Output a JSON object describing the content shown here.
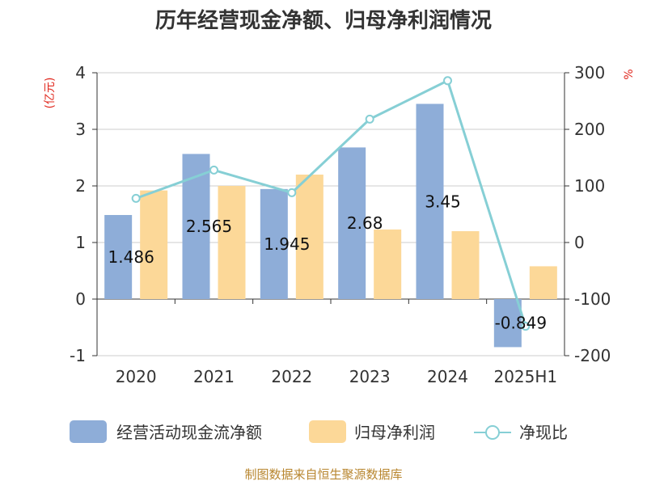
{
  "chart_data": {
    "type": "bar",
    "title": "历年经营现金净额、归母净利润情况",
    "categories": [
      "2020",
      "2021",
      "2022",
      "2023",
      "2024",
      "2025H1"
    ],
    "y_left": {
      "unit": "(亿元)",
      "ylim": [
        -1,
        4
      ],
      "ticks": [
        "4",
        "3",
        "2",
        "1",
        "0",
        "-1"
      ]
    },
    "y_right": {
      "unit": "%",
      "ylim": [
        -200,
        300
      ],
      "ticks": [
        "300",
        "200",
        "100",
        "0",
        "-100",
        "-200"
      ]
    },
    "series": [
      {
        "name": "经营活动现金流净额",
        "kind": "bar",
        "axis": "left",
        "color": "#8eadd8",
        "values": [
          1.486,
          2.565,
          1.945,
          2.68,
          3.45,
          -0.849
        ],
        "labels": [
          "1.486",
          "2.565",
          "1.945",
          "2.68",
          "3.45",
          "-0.849"
        ]
      },
      {
        "name": "归母净利润",
        "kind": "bar",
        "axis": "left",
        "color": "#fcd898",
        "values": [
          1.92,
          2.0,
          2.2,
          1.23,
          1.2,
          0.58
        ]
      },
      {
        "name": "净现比",
        "kind": "line",
        "axis": "right",
        "color": "#86cfd5",
        "values": [
          78,
          128,
          88,
          218,
          286,
          -148
        ]
      }
    ],
    "grid": true,
    "legend_position": "bottom"
  },
  "legend": {
    "cash_flow": "经营活动现金流净额",
    "net_profit": "归母净利润",
    "ratio": "净现比"
  },
  "footer": {
    "source": "制图数据来自恒生聚源数据库"
  }
}
